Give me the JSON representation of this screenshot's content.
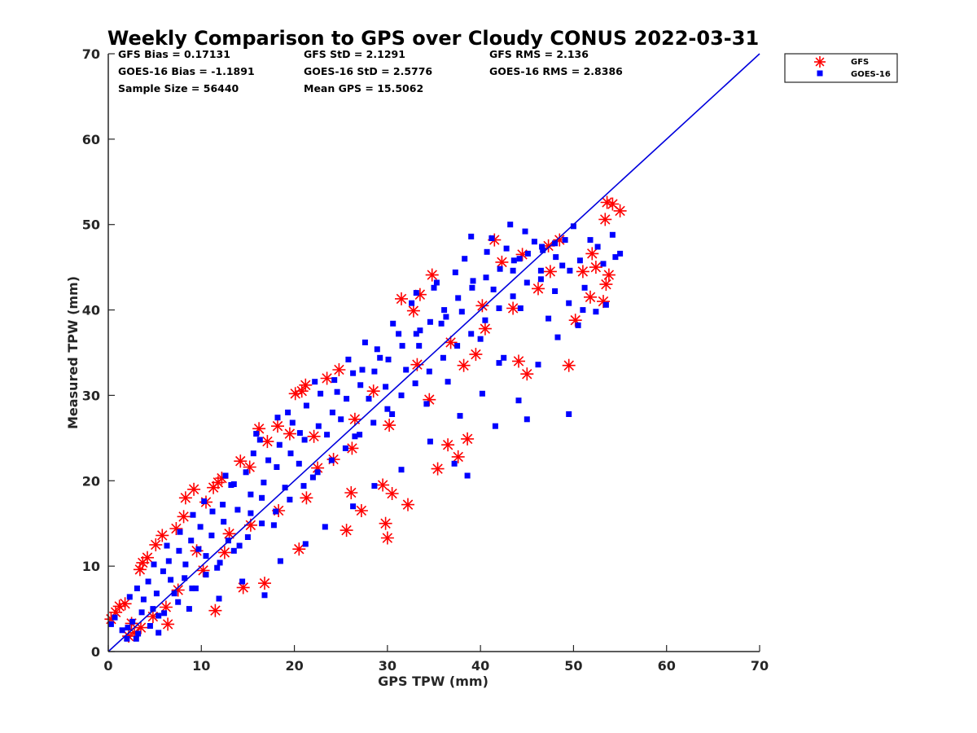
{
  "chart_data": {
    "type": "scatter",
    "title": "Weekly Comparison to GPS over Cloudy CONUS 2022-03-31",
    "xlabel": "GPS TPW (mm)",
    "ylabel": "Measured TPW (mm)",
    "xlim": [
      0,
      70
    ],
    "ylim": [
      0,
      70
    ],
    "xticks": [
      "0",
      "10",
      "20",
      "30",
      "40",
      "50",
      "60",
      "70"
    ],
    "yticks": [
      "0",
      "10",
      "20",
      "30",
      "40",
      "50",
      "60",
      "70"
    ],
    "grid": false,
    "legend_position": "outside-top-right",
    "reference_line": {
      "from": [
        0,
        0
      ],
      "to": [
        70,
        70
      ],
      "color": "#0000dd"
    },
    "stats": [
      [
        "GFS Bias = 0.17131",
        "GFS StD = 2.1291",
        "GFS RMS = 2.136"
      ],
      [
        "GOES-16 Bias = -1.1891",
        "GOES-16 StD = 2.5776",
        "GOES-16 RMS = 2.8386"
      ],
      [
        "Sample Size = 56440",
        "Mean GPS = 15.5062",
        ""
      ]
    ],
    "series": [
      {
        "name": "GFS",
        "marker": "asterisk",
        "color": "#ff0000",
        "points": [
          [
            0.3,
            3.8
          ],
          [
            0.8,
            4.6
          ],
          [
            1.2,
            5.3
          ],
          [
            1.8,
            5.6
          ],
          [
            2.2,
            1.8
          ],
          [
            2.8,
            2.2
          ],
          [
            3.4,
            9.6
          ],
          [
            3.7,
            10.4
          ],
          [
            4.2,
            11.0
          ],
          [
            5.1,
            12.5
          ],
          [
            5.8,
            13.6
          ],
          [
            6.4,
            3.2
          ],
          [
            7.3,
            14.4
          ],
          [
            8.1,
            15.8
          ],
          [
            8.3,
            18.0
          ],
          [
            9.2,
            19.0
          ],
          [
            10.5,
            17.5
          ],
          [
            11.3,
            19.2
          ],
          [
            11.8,
            19.8
          ],
          [
            12.2,
            20.3
          ],
          [
            14.2,
            22.3
          ],
          [
            15.2,
            21.6
          ],
          [
            16.2,
            26.1
          ],
          [
            17.1,
            24.6
          ],
          [
            18.2,
            26.4
          ],
          [
            19.5,
            25.5
          ],
          [
            20.1,
            30.2
          ],
          [
            20.8,
            30.5
          ],
          [
            21.2,
            31.2
          ],
          [
            22.1,
            25.2
          ],
          [
            23.5,
            32.0
          ],
          [
            24.8,
            33.0
          ],
          [
            25.6,
            14.2
          ],
          [
            26.1,
            18.6
          ],
          [
            27.2,
            16.5
          ],
          [
            29.5,
            19.5
          ],
          [
            29.8,
            15.0
          ],
          [
            30.0,
            13.3
          ],
          [
            30.5,
            18.5
          ],
          [
            32.2,
            17.2
          ],
          [
            31.5,
            41.3
          ],
          [
            32.8,
            39.9
          ],
          [
            33.5,
            41.8
          ],
          [
            34.8,
            44.1
          ],
          [
            35.4,
            21.4
          ],
          [
            36.5,
            24.2
          ],
          [
            37.6,
            22.8
          ],
          [
            38.6,
            24.9
          ],
          [
            39.5,
            34.8
          ],
          [
            40.5,
            37.8
          ],
          [
            41.5,
            48.2
          ],
          [
            42.3,
            45.6
          ],
          [
            44.1,
            34.0
          ],
          [
            45.0,
            32.5
          ],
          [
            46.2,
            42.5
          ],
          [
            47.3,
            47.5
          ],
          [
            49.5,
            33.5
          ],
          [
            50.2,
            38.8
          ],
          [
            51.0,
            44.5
          ],
          [
            51.8,
            41.5
          ],
          [
            52.4,
            45.0
          ],
          [
            53.4,
            50.6
          ],
          [
            53.6,
            52.6
          ],
          [
            54.2,
            52.4
          ],
          [
            55.0,
            51.6
          ],
          [
            53.5,
            43.0
          ],
          [
            53.8,
            44.1
          ],
          [
            53.2,
            41.0
          ],
          [
            52.0,
            46.6
          ],
          [
            48.5,
            48.2
          ],
          [
            44.5,
            46.5
          ],
          [
            40.2,
            40.5
          ],
          [
            36.8,
            36.2
          ],
          [
            33.2,
            33.6
          ],
          [
            28.5,
            30.5
          ],
          [
            26.5,
            27.2
          ],
          [
            24.2,
            22.5
          ],
          [
            22.5,
            21.5
          ],
          [
            21.3,
            18.0
          ],
          [
            18.3,
            16.5
          ],
          [
            16.8,
            8.0
          ],
          [
            15.3,
            14.8
          ],
          [
            13.0,
            13.8
          ],
          [
            12.5,
            11.6
          ],
          [
            10.2,
            9.5
          ],
          [
            9.5,
            11.8
          ],
          [
            7.5,
            7.2
          ],
          [
            6.2,
            5.2
          ],
          [
            4.8,
            4.1
          ],
          [
            3.5,
            2.8
          ],
          [
            2.5,
            3.3
          ],
          [
            26.2,
            23.8
          ],
          [
            30.2,
            26.5
          ],
          [
            34.5,
            29.5
          ],
          [
            38.2,
            33.5
          ],
          [
            43.5,
            40.2
          ],
          [
            47.5,
            44.5
          ],
          [
            20.5,
            12.0
          ],
          [
            14.5,
            7.5
          ],
          [
            11.5,
            4.8
          ]
        ]
      },
      {
        "name": "GOES-16",
        "marker": "square",
        "color": "#0000ff",
        "points": [
          [
            0.3,
            3.2
          ],
          [
            0.7,
            4.0
          ],
          [
            1.5,
            2.5
          ],
          [
            2.0,
            1.5
          ],
          [
            2.6,
            3.5
          ],
          [
            3.2,
            2.1
          ],
          [
            3.8,
            6.1
          ],
          [
            4.3,
            8.2
          ],
          [
            4.8,
            5.0
          ],
          [
            5.4,
            4.2
          ],
          [
            5.9,
            9.4
          ],
          [
            6.5,
            10.6
          ],
          [
            7.1,
            6.8
          ],
          [
            7.6,
            11.8
          ],
          [
            8.2,
            8.6
          ],
          [
            8.9,
            13.0
          ],
          [
            9.4,
            7.4
          ],
          [
            9.9,
            14.6
          ],
          [
            10.5,
            11.2
          ],
          [
            11.2,
            16.4
          ],
          [
            11.7,
            9.8
          ],
          [
            12.3,
            17.2
          ],
          [
            12.9,
            13.0
          ],
          [
            13.5,
            19.6
          ],
          [
            14.1,
            12.4
          ],
          [
            14.8,
            21.0
          ],
          [
            15.3,
            16.2
          ],
          [
            15.9,
            25.5
          ],
          [
            16.5,
            18.0
          ],
          [
            17.2,
            22.4
          ],
          [
            17.8,
            14.8
          ],
          [
            18.4,
            24.2
          ],
          [
            19.0,
            19.2
          ],
          [
            19.8,
            26.8
          ],
          [
            20.5,
            22.0
          ],
          [
            21.3,
            28.8
          ],
          [
            22.0,
            20.4
          ],
          [
            22.8,
            30.2
          ],
          [
            23.5,
            25.4
          ],
          [
            24.3,
            31.8
          ],
          [
            25.0,
            27.2
          ],
          [
            25.8,
            34.2
          ],
          [
            26.5,
            25.2
          ],
          [
            27.3,
            33.0
          ],
          [
            28.0,
            29.6
          ],
          [
            28.9,
            35.4
          ],
          [
            29.8,
            31.0
          ],
          [
            30.5,
            27.8
          ],
          [
            31.2,
            37.2
          ],
          [
            32.0,
            33.0
          ],
          [
            32.6,
            40.8
          ],
          [
            33.4,
            35.8
          ],
          [
            34.2,
            29.0
          ],
          [
            35.0,
            42.6
          ],
          [
            35.8,
            38.4
          ],
          [
            36.5,
            31.6
          ],
          [
            37.3,
            44.4
          ],
          [
            38.0,
            39.8
          ],
          [
            38.6,
            20.6
          ],
          [
            39.2,
            43.4
          ],
          [
            40.0,
            36.6
          ],
          [
            40.7,
            46.8
          ],
          [
            41.4,
            42.4
          ],
          [
            42.0,
            33.8
          ],
          [
            42.8,
            47.2
          ],
          [
            43.5,
            44.6
          ],
          [
            44.3,
            40.2
          ],
          [
            45.0,
            27.2
          ],
          [
            45.8,
            48.0
          ],
          [
            46.5,
            43.6
          ],
          [
            47.3,
            39.0
          ],
          [
            48.0,
            47.8
          ],
          [
            48.8,
            45.2
          ],
          [
            49.5,
            27.8
          ],
          [
            50.0,
            49.8
          ],
          [
            50.7,
            45.8
          ],
          [
            51.2,
            42.6
          ],
          [
            51.8,
            48.2
          ],
          [
            52.4,
            39.8
          ],
          [
            53.2,
            45.4
          ],
          [
            53.5,
            40.6
          ],
          [
            54.2,
            48.8
          ],
          [
            54.5,
            46.2
          ],
          [
            55.0,
            46.6
          ],
          [
            43.2,
            50.0
          ],
          [
            39.0,
            48.6
          ],
          [
            44.8,
            49.2
          ],
          [
            36.3,
            39.2
          ],
          [
            33.5,
            37.6
          ],
          [
            29.2,
            34.4
          ],
          [
            26.3,
            32.6
          ],
          [
            22.2,
            31.6
          ],
          [
            19.3,
            28.0
          ],
          [
            16.3,
            24.8
          ],
          [
            13.2,
            19.5
          ],
          [
            10.3,
            17.6
          ],
          [
            7.7,
            14.0
          ],
          [
            4.9,
            10.2
          ],
          [
            2.3,
            6.4
          ],
          [
            5.4,
            2.2
          ],
          [
            8.7,
            5.0
          ],
          [
            11.9,
            6.2
          ],
          [
            14.4,
            8.2
          ],
          [
            16.8,
            6.6
          ],
          [
            18.5,
            10.6
          ],
          [
            21.2,
            12.6
          ],
          [
            23.3,
            14.6
          ],
          [
            26.3,
            17.0
          ],
          [
            28.6,
            19.4
          ],
          [
            31.5,
            21.3
          ],
          [
            34.6,
            24.6
          ],
          [
            37.8,
            27.6
          ],
          [
            40.2,
            30.2
          ],
          [
            42.5,
            34.4
          ],
          [
            37.2,
            22.0
          ],
          [
            41.6,
            26.4
          ],
          [
            44.1,
            29.4
          ],
          [
            46.2,
            33.6
          ],
          [
            48.3,
            36.8
          ],
          [
            50.5,
            38.2
          ],
          [
            3.1,
            7.4
          ],
          [
            6.3,
            12.4
          ],
          [
            9.1,
            16.0
          ],
          [
            12.6,
            20.6
          ],
          [
            15.6,
            23.2
          ],
          [
            18.2,
            27.4
          ],
          [
            20.6,
            25.6
          ],
          [
            24.6,
            30.4
          ],
          [
            27.6,
            36.2
          ],
          [
            30.6,
            38.4
          ],
          [
            33.1,
            42.0
          ],
          [
            35.3,
            43.2
          ],
          [
            38.3,
            46.0
          ],
          [
            41.2,
            48.4
          ],
          [
            44.2,
            46.0
          ],
          [
            46.7,
            47.0
          ],
          [
            49.1,
            48.2
          ],
          [
            52.6,
            47.4
          ],
          [
            2.1,
            2.8
          ],
          [
            3.6,
            4.6
          ],
          [
            5.2,
            6.8
          ],
          [
            6.7,
            8.4
          ],
          [
            8.3,
            10.2
          ],
          [
            9.7,
            12.0
          ],
          [
            11.1,
            13.6
          ],
          [
            12.4,
            15.2
          ],
          [
            13.9,
            16.6
          ],
          [
            15.3,
            18.4
          ],
          [
            16.7,
            19.8
          ],
          [
            18.1,
            21.6
          ],
          [
            19.6,
            23.2
          ],
          [
            21.1,
            24.8
          ],
          [
            22.6,
            26.4
          ],
          [
            24.1,
            28.0
          ],
          [
            25.6,
            29.6
          ],
          [
            27.1,
            31.2
          ],
          [
            28.6,
            32.8
          ],
          [
            30.1,
            34.2
          ],
          [
            31.6,
            35.8
          ],
          [
            33.1,
            37.2
          ],
          [
            34.6,
            38.6
          ],
          [
            36.1,
            40.0
          ],
          [
            37.6,
            41.4
          ],
          [
            39.1,
            42.6
          ],
          [
            40.6,
            43.8
          ],
          [
            42.1,
            44.8
          ],
          [
            43.6,
            45.8
          ],
          [
            45.1,
            46.6
          ],
          [
            46.6,
            47.4
          ],
          [
            48.1,
            46.2
          ],
          [
            49.6,
            44.6
          ],
          [
            3.0,
            1.5
          ],
          [
            4.5,
            3.0
          ],
          [
            6.0,
            4.5
          ],
          [
            7.5,
            5.8
          ],
          [
            9.0,
            7.4
          ],
          [
            10.5,
            9.0
          ],
          [
            12.0,
            10.4
          ],
          [
            13.5,
            11.8
          ],
          [
            15.0,
            13.4
          ],
          [
            16.5,
            15.0
          ],
          [
            18.0,
            16.4
          ],
          [
            19.5,
            17.8
          ],
          [
            21.0,
            19.4
          ],
          [
            22.5,
            21.0
          ],
          [
            24.0,
            22.4
          ],
          [
            25.5,
            23.8
          ],
          [
            27.0,
            25.4
          ],
          [
            28.5,
            26.8
          ],
          [
            30.0,
            28.4
          ],
          [
            31.5,
            30.0
          ],
          [
            33.0,
            31.4
          ],
          [
            34.5,
            32.8
          ],
          [
            36.0,
            34.4
          ],
          [
            37.5,
            35.8
          ],
          [
            39.0,
            37.2
          ],
          [
            40.5,
            38.8
          ],
          [
            42.0,
            40.2
          ],
          [
            43.5,
            41.6
          ],
          [
            45.0,
            43.2
          ],
          [
            46.5,
            44.6
          ],
          [
            48.0,
            42.2
          ],
          [
            49.5,
            40.8
          ],
          [
            51.0,
            40.0
          ]
        ]
      }
    ]
  }
}
